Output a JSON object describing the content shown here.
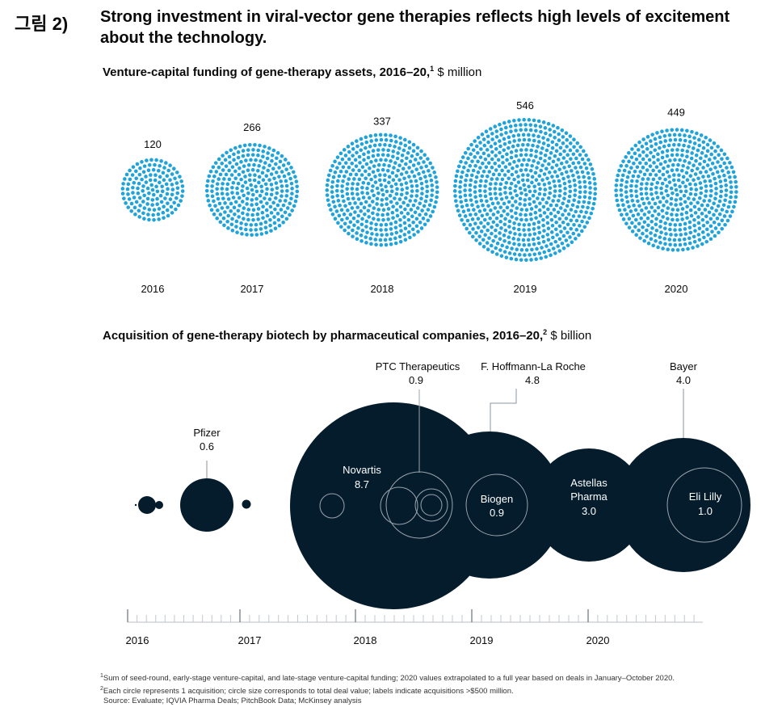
{
  "figure_label": "그림 2)",
  "headline": "Strong investment in viral-vector gene therapies reflects high levels of excitement about the technology.",
  "chart_data": [
    {
      "type": "bubble",
      "title": "Venture-capital funding of gene-therapy assets, 2016–20,",
      "title_note": "1",
      "unit": "$ million",
      "categories": [
        "2016",
        "2017",
        "2018",
        "2019",
        "2020"
      ],
      "values": [
        120,
        266,
        337,
        546,
        449
      ],
      "colors": {
        "dots": "#1fa3db"
      }
    },
    {
      "type": "bubble",
      "title": "Acquisition of gene-therapy biotech by pharmaceutical companies, 2016–20,",
      "title_note": "2",
      "unit": "$ billion",
      "x_axis_labels": [
        "2016",
        "2017",
        "2018",
        "2019",
        "2020"
      ],
      "labeled_acquisitions": [
        {
          "name": "Pfizer",
          "value": "0.6"
        },
        {
          "name": "Novartis",
          "value": "8.7"
        },
        {
          "name": "PTC Therapeutics",
          "value": "0.9"
        },
        {
          "name": "F. Hoffmann-La Roche",
          "value": "4.8"
        },
        {
          "name": "Biogen",
          "value": "0.9"
        },
        {
          "name": "Astellas Pharma",
          "value": "3.0"
        },
        {
          "name": "Bayer",
          "value": "4.0"
        },
        {
          "name": "Eli Lilly",
          "value": "1.0"
        }
      ],
      "colors": {
        "circles": "#051c2c",
        "outline": "#9aa4ad"
      }
    }
  ],
  "footnotes": {
    "n1_mark": "1",
    "n1": "Sum of seed-round, early-stage venture-capital, and late-stage venture-capital funding; 2020 values extrapolated to a full year based on deals in January–October 2020.",
    "n2_mark": "2",
    "n2": "Each circle represents 1 acquisition; circle size corresponds to total deal value; labels indicate acquisitions >$500 million.",
    "source": "Source: Evaluate; IQVIA Pharma Deals; PitchBook Data; McKinsey analysis"
  }
}
